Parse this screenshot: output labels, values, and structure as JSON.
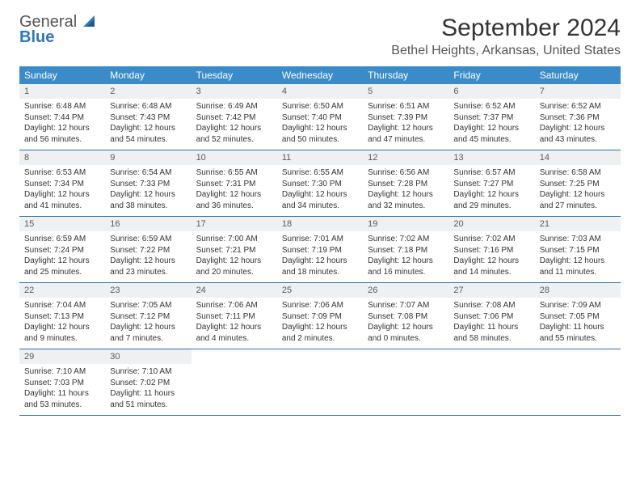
{
  "brand": {
    "name_line1": "General",
    "name_line2": "Blue"
  },
  "title": "September 2024",
  "location": "Bethel Heights, Arkansas, United States",
  "theme": {
    "header_bg": "#3b8bc9",
    "header_text": "#ffffff",
    "daynum_bg": "#eef0f2",
    "week_border": "#2f6fa5",
    "body_text": "#333333",
    "page_bg": "#ffffff",
    "logo_gray": "#555555",
    "logo_blue": "#2f77bb"
  },
  "dow": [
    "Sunday",
    "Monday",
    "Tuesday",
    "Wednesday",
    "Thursday",
    "Friday",
    "Saturday"
  ],
  "weeks": [
    [
      {
        "n": "1",
        "sr": "Sunrise: 6:48 AM",
        "ss": "Sunset: 7:44 PM",
        "dl1": "Daylight: 12 hours",
        "dl2": "and 56 minutes."
      },
      {
        "n": "2",
        "sr": "Sunrise: 6:48 AM",
        "ss": "Sunset: 7:43 PM",
        "dl1": "Daylight: 12 hours",
        "dl2": "and 54 minutes."
      },
      {
        "n": "3",
        "sr": "Sunrise: 6:49 AM",
        "ss": "Sunset: 7:42 PM",
        "dl1": "Daylight: 12 hours",
        "dl2": "and 52 minutes."
      },
      {
        "n": "4",
        "sr": "Sunrise: 6:50 AM",
        "ss": "Sunset: 7:40 PM",
        "dl1": "Daylight: 12 hours",
        "dl2": "and 50 minutes."
      },
      {
        "n": "5",
        "sr": "Sunrise: 6:51 AM",
        "ss": "Sunset: 7:39 PM",
        "dl1": "Daylight: 12 hours",
        "dl2": "and 47 minutes."
      },
      {
        "n": "6",
        "sr": "Sunrise: 6:52 AM",
        "ss": "Sunset: 7:37 PM",
        "dl1": "Daylight: 12 hours",
        "dl2": "and 45 minutes."
      },
      {
        "n": "7",
        "sr": "Sunrise: 6:52 AM",
        "ss": "Sunset: 7:36 PM",
        "dl1": "Daylight: 12 hours",
        "dl2": "and 43 minutes."
      }
    ],
    [
      {
        "n": "8",
        "sr": "Sunrise: 6:53 AM",
        "ss": "Sunset: 7:34 PM",
        "dl1": "Daylight: 12 hours",
        "dl2": "and 41 minutes."
      },
      {
        "n": "9",
        "sr": "Sunrise: 6:54 AM",
        "ss": "Sunset: 7:33 PM",
        "dl1": "Daylight: 12 hours",
        "dl2": "and 38 minutes."
      },
      {
        "n": "10",
        "sr": "Sunrise: 6:55 AM",
        "ss": "Sunset: 7:31 PM",
        "dl1": "Daylight: 12 hours",
        "dl2": "and 36 minutes."
      },
      {
        "n": "11",
        "sr": "Sunrise: 6:55 AM",
        "ss": "Sunset: 7:30 PM",
        "dl1": "Daylight: 12 hours",
        "dl2": "and 34 minutes."
      },
      {
        "n": "12",
        "sr": "Sunrise: 6:56 AM",
        "ss": "Sunset: 7:28 PM",
        "dl1": "Daylight: 12 hours",
        "dl2": "and 32 minutes."
      },
      {
        "n": "13",
        "sr": "Sunrise: 6:57 AM",
        "ss": "Sunset: 7:27 PM",
        "dl1": "Daylight: 12 hours",
        "dl2": "and 29 minutes."
      },
      {
        "n": "14",
        "sr": "Sunrise: 6:58 AM",
        "ss": "Sunset: 7:25 PM",
        "dl1": "Daylight: 12 hours",
        "dl2": "and 27 minutes."
      }
    ],
    [
      {
        "n": "15",
        "sr": "Sunrise: 6:59 AM",
        "ss": "Sunset: 7:24 PM",
        "dl1": "Daylight: 12 hours",
        "dl2": "and 25 minutes."
      },
      {
        "n": "16",
        "sr": "Sunrise: 6:59 AM",
        "ss": "Sunset: 7:22 PM",
        "dl1": "Daylight: 12 hours",
        "dl2": "and 23 minutes."
      },
      {
        "n": "17",
        "sr": "Sunrise: 7:00 AM",
        "ss": "Sunset: 7:21 PM",
        "dl1": "Daylight: 12 hours",
        "dl2": "and 20 minutes."
      },
      {
        "n": "18",
        "sr": "Sunrise: 7:01 AM",
        "ss": "Sunset: 7:19 PM",
        "dl1": "Daylight: 12 hours",
        "dl2": "and 18 minutes."
      },
      {
        "n": "19",
        "sr": "Sunrise: 7:02 AM",
        "ss": "Sunset: 7:18 PM",
        "dl1": "Daylight: 12 hours",
        "dl2": "and 16 minutes."
      },
      {
        "n": "20",
        "sr": "Sunrise: 7:02 AM",
        "ss": "Sunset: 7:16 PM",
        "dl1": "Daylight: 12 hours",
        "dl2": "and 14 minutes."
      },
      {
        "n": "21",
        "sr": "Sunrise: 7:03 AM",
        "ss": "Sunset: 7:15 PM",
        "dl1": "Daylight: 12 hours",
        "dl2": "and 11 minutes."
      }
    ],
    [
      {
        "n": "22",
        "sr": "Sunrise: 7:04 AM",
        "ss": "Sunset: 7:13 PM",
        "dl1": "Daylight: 12 hours",
        "dl2": "and 9 minutes."
      },
      {
        "n": "23",
        "sr": "Sunrise: 7:05 AM",
        "ss": "Sunset: 7:12 PM",
        "dl1": "Daylight: 12 hours",
        "dl2": "and 7 minutes."
      },
      {
        "n": "24",
        "sr": "Sunrise: 7:06 AM",
        "ss": "Sunset: 7:11 PM",
        "dl1": "Daylight: 12 hours",
        "dl2": "and 4 minutes."
      },
      {
        "n": "25",
        "sr": "Sunrise: 7:06 AM",
        "ss": "Sunset: 7:09 PM",
        "dl1": "Daylight: 12 hours",
        "dl2": "and 2 minutes."
      },
      {
        "n": "26",
        "sr": "Sunrise: 7:07 AM",
        "ss": "Sunset: 7:08 PM",
        "dl1": "Daylight: 12 hours",
        "dl2": "and 0 minutes."
      },
      {
        "n": "27",
        "sr": "Sunrise: 7:08 AM",
        "ss": "Sunset: 7:06 PM",
        "dl1": "Daylight: 11 hours",
        "dl2": "and 58 minutes."
      },
      {
        "n": "28",
        "sr": "Sunrise: 7:09 AM",
        "ss": "Sunset: 7:05 PM",
        "dl1": "Daylight: 11 hours",
        "dl2": "and 55 minutes."
      }
    ],
    [
      {
        "n": "29",
        "sr": "Sunrise: 7:10 AM",
        "ss": "Sunset: 7:03 PM",
        "dl1": "Daylight: 11 hours",
        "dl2": "and 53 minutes."
      },
      {
        "n": "30",
        "sr": "Sunrise: 7:10 AM",
        "ss": "Sunset: 7:02 PM",
        "dl1": "Daylight: 11 hours",
        "dl2": "and 51 minutes."
      },
      null,
      null,
      null,
      null,
      null
    ]
  ]
}
